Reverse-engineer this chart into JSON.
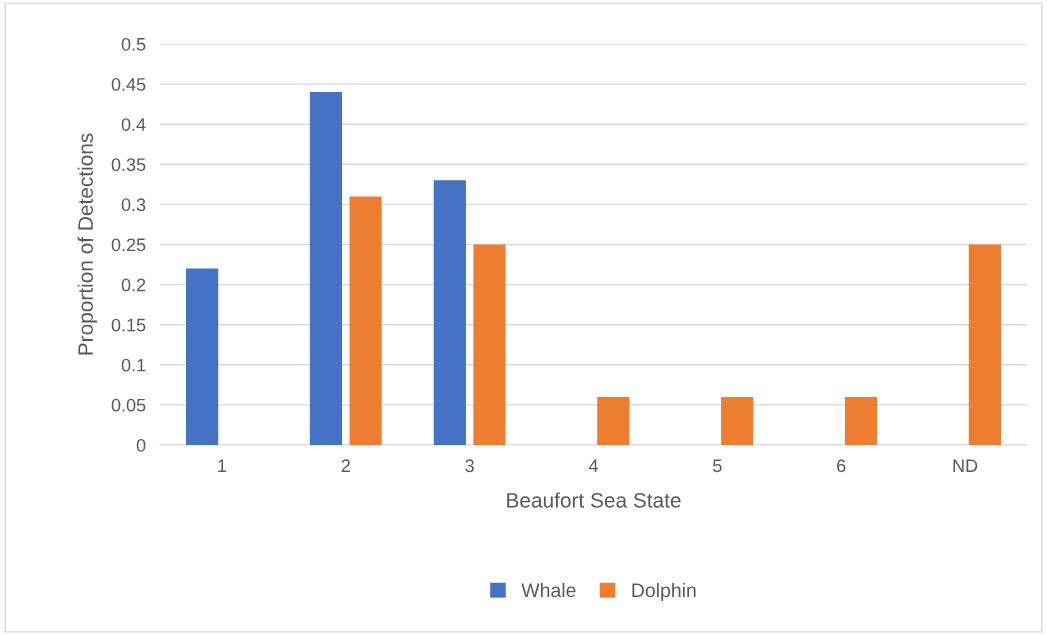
{
  "chart_data": {
    "type": "bar",
    "xlabel": "Beaufort Sea State",
    "ylabel": "Proportion of Detections",
    "categories": [
      "1",
      "2",
      "3",
      "4",
      "5",
      "6",
      "ND"
    ],
    "series": [
      {
        "name": "Whale",
        "color": "#4472c4",
        "values": [
          0.22,
          0.44,
          0.33,
          0,
          0,
          0,
          0
        ]
      },
      {
        "name": "Dolphin",
        "color": "#ed7d31",
        "values": [
          0,
          0.31,
          0.25,
          0.06,
          0.06,
          0.06,
          0.25
        ]
      }
    ],
    "ylim": [
      0,
      0.5
    ],
    "yticks": [
      0,
      0.05,
      0.1,
      0.15,
      0.2,
      0.25,
      0.3,
      0.35,
      0.4,
      0.45,
      0.5
    ],
    "grid": "y",
    "legend": "bottom"
  }
}
